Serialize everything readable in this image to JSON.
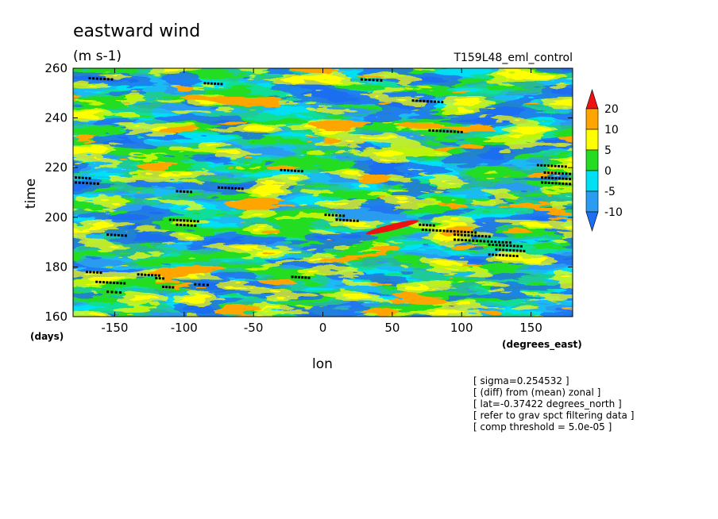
{
  "chart_data": {
    "type": "heatmap",
    "title": "eastward wind",
    "units_label": "(m s-1)",
    "experiment_label": "T159L48_eml_control",
    "xlabel": "lon",
    "xunits": "(degrees_east)",
    "ylabel": "time",
    "yunits": "(days)",
    "xlim": [
      -180,
      180
    ],
    "ylim": [
      160,
      260
    ],
    "xticks": [
      -150,
      -100,
      -50,
      0,
      50,
      100,
      150
    ],
    "yticks": [
      160,
      180,
      200,
      220,
      240,
      260
    ],
    "grid": false,
    "colorbar": {
      "placement": "right",
      "levels": [
        -10,
        -5,
        0,
        5,
        10,
        20
      ],
      "colors": [
        "#1e6ef0",
        "#2c9cf0",
        "#00e0f5",
        "#22dd22",
        "#ffff00",
        "#ffa500",
        "#ee1111"
      ],
      "extend": "both"
    },
    "features": [
      {
        "lon": 50,
        "time": 196,
        "value": 22,
        "note": "positive streak"
      },
      {
        "lon": 75,
        "time": 166,
        "value": 15
      },
      {
        "lon": -140,
        "time": 200,
        "value": -12
      }
    ],
    "dot_series": [
      {
        "t0": 256,
        "x0": -168,
        "x1": -152
      },
      {
        "t0": 254,
        "x0": -85,
        "x1": -73
      },
      {
        "t0": 255.5,
        "x0": 28,
        "x1": 42
      },
      {
        "t0": 247,
        "x0": 65,
        "x1": 86
      },
      {
        "t0": 235,
        "x0": 77,
        "x1": 100
      },
      {
        "t0": 219,
        "x0": -30,
        "x1": -15
      },
      {
        "t0": 216,
        "x0": -178,
        "x1": -168
      },
      {
        "t0": 214,
        "x0": -178,
        "x1": -162
      },
      {
        "t0": 212,
        "x0": -75,
        "x1": -58
      },
      {
        "t0": 210.5,
        "x0": -105,
        "x1": -95
      },
      {
        "t0": 201,
        "x0": 2,
        "x1": 15
      },
      {
        "t0": 199,
        "x0": -110,
        "x1": -90
      },
      {
        "t0": 199,
        "x0": 10,
        "x1": 25
      },
      {
        "t0": 197,
        "x0": -105,
        "x1": -92
      },
      {
        "t0": 197,
        "x0": 70,
        "x1": 80
      },
      {
        "t0": 195,
        "x0": 72,
        "x1": 110
      },
      {
        "t0": 193,
        "x0": -155,
        "x1": -142
      },
      {
        "t0": 193,
        "x0": 95,
        "x1": 120
      },
      {
        "t0": 191,
        "x0": 95,
        "x1": 135
      },
      {
        "t0": 189,
        "x0": 120,
        "x1": 143
      },
      {
        "t0": 187,
        "x0": 125,
        "x1": 145
      },
      {
        "t0": 185,
        "x0": 120,
        "x1": 140
      },
      {
        "t0": 178,
        "x0": -170,
        "x1": -160
      },
      {
        "t0": 177,
        "x0": -133,
        "x1": -118
      },
      {
        "t0": 176,
        "x0": -22,
        "x1": -10
      },
      {
        "t0": 175.5,
        "x0": -120,
        "x1": -115
      },
      {
        "t0": 174,
        "x0": -163,
        "x1": -143
      },
      {
        "t0": 173,
        "x0": -92,
        "x1": -83
      },
      {
        "t0": 172,
        "x0": -115,
        "x1": -108
      },
      {
        "t0": 170,
        "x0": -155,
        "x1": -146
      },
      {
        "t0": 221,
        "x0": 155,
        "x1": 175
      },
      {
        "t0": 218,
        "x0": 160,
        "x1": 178
      },
      {
        "t0": 216,
        "x0": 158,
        "x1": 178
      },
      {
        "t0": 214,
        "x0": 158,
        "x1": 178
      }
    ],
    "annotations": [
      "[ sigma=0.254532 ]",
      "[ (diff) from (mean) zonal ]",
      "[ lat=-0.37422 degrees_north ]",
      "[ refer to grav spct filtering data ]",
      "[ comp threshold = 5.0e-05 ]"
    ]
  }
}
